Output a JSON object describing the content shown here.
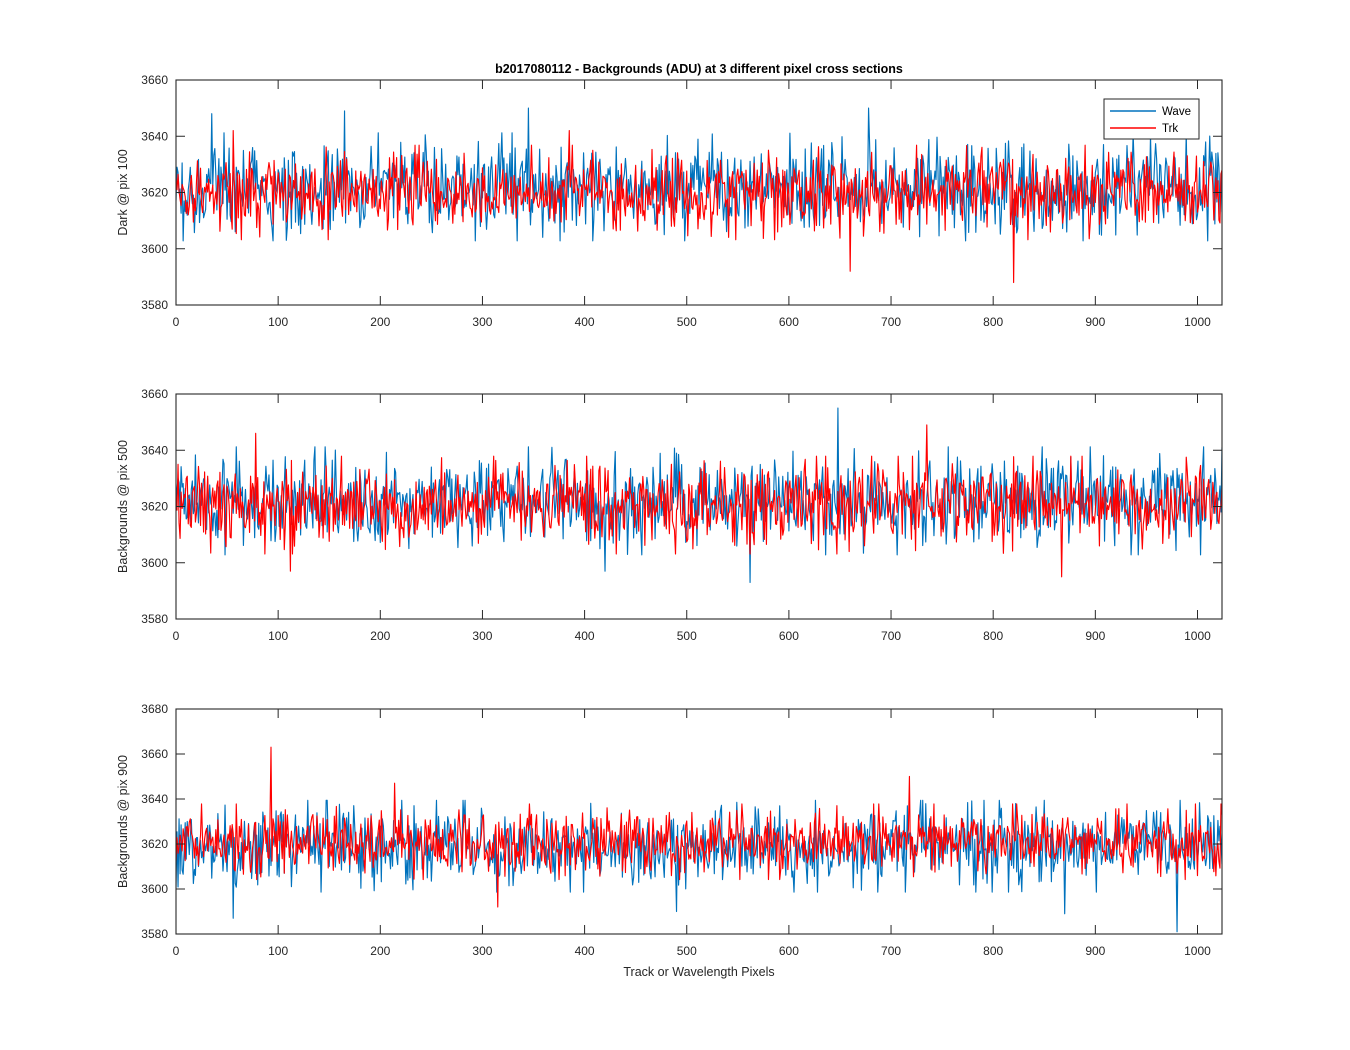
{
  "figure_title": "b2017080112 - Backgrounds (ADU) at 3 different pixel cross sections",
  "legend": [
    {
      "label": "Wave",
      "color": "#0072BD"
    },
    {
      "label": "Trk",
      "color": "#FF0000"
    }
  ],
  "chart_data": [
    {
      "type": "line",
      "title": "b2017080112 - Backgrounds (ADU) at 3 different pixel cross sections",
      "xlabel": "",
      "ylabel": "Dark @ pix 100",
      "xlim": [
        0,
        1024
      ],
      "ylim": [
        3580,
        3660
      ],
      "xticks": [
        0,
        100,
        200,
        300,
        400,
        500,
        600,
        700,
        800,
        900,
        1000
      ],
      "yticks": [
        3580,
        3600,
        3620,
        3640,
        3660
      ],
      "grid": false,
      "legend_position": "top-right",
      "n_points": 1024,
      "series": [
        {
          "name": "Wave",
          "color": "#0072BD",
          "typical_mean": 3622,
          "typical_range": [
            3606,
            3638
          ],
          "notable_points": [
            [
              35,
              3648
            ],
            [
              108,
              3603
            ],
            [
              165,
              3649
            ],
            [
              345,
              3650
            ],
            [
              678,
              3650
            ],
            [
              900,
              3627
            ],
            [
              1024,
              3613
            ]
          ]
        },
        {
          "name": "Trk",
          "color": "#FF0000",
          "typical_mean": 3620,
          "typical_range": [
            3606,
            3634
          ],
          "notable_points": [
            [
              56,
              3642
            ],
            [
              385,
              3642
            ],
            [
              660,
              3592
            ],
            [
              820,
              3588
            ],
            [
              1024,
              3628
            ]
          ]
        }
      ]
    },
    {
      "type": "line",
      "title": "",
      "xlabel": "",
      "ylabel": "Backgrounds @ pix 500",
      "xlim": [
        0,
        1024
      ],
      "ylim": [
        3580,
        3660
      ],
      "xticks": [
        0,
        100,
        200,
        300,
        400,
        500,
        600,
        700,
        800,
        900,
        1000
      ],
      "yticks": [
        3580,
        3600,
        3620,
        3640,
        3660
      ],
      "grid": false,
      "n_points": 1024,
      "series": [
        {
          "name": "Wave",
          "color": "#0072BD",
          "typical_mean": 3622,
          "typical_range": [
            3606,
            3638
          ],
          "notable_points": [
            [
              420,
              3597
            ],
            [
              562,
              3593
            ],
            [
              648,
              3655
            ],
            [
              1024,
              3641
            ]
          ]
        },
        {
          "name": "Trk",
          "color": "#FF0000",
          "typical_mean": 3621,
          "typical_range": [
            3606,
            3635
          ],
          "notable_points": [
            [
              78,
              3646
            ],
            [
              112,
              3597
            ],
            [
              735,
              3649
            ],
            [
              867,
              3595
            ]
          ]
        }
      ]
    },
    {
      "type": "line",
      "title": "",
      "xlabel": "Track or Wavelength Pixels",
      "ylabel": "Backgrounds @ pix 900",
      "xlim": [
        0,
        1024
      ],
      "ylim": [
        3580,
        3680
      ],
      "xticks": [
        0,
        100,
        200,
        300,
        400,
        500,
        600,
        700,
        800,
        900,
        1000
      ],
      "yticks": [
        3580,
        3600,
        3620,
        3640,
        3660,
        3680
      ],
      "grid": false,
      "n_points": 1024,
      "series": [
        {
          "name": "Wave",
          "color": "#0072BD",
          "typical_mean": 3619,
          "typical_range": [
            3602,
            3636
          ],
          "notable_points": [
            [
              56,
              3587
            ],
            [
              490,
              3590
            ],
            [
              870,
              3589
            ],
            [
              980,
              3581
            ],
            [
              1024,
              3611
            ]
          ]
        },
        {
          "name": "Trk",
          "color": "#FF0000",
          "typical_mean": 3621,
          "typical_range": [
            3607,
            3635
          ],
          "notable_points": [
            [
              93,
              3663
            ],
            [
              214,
              3647
            ],
            [
              315,
              3592
            ],
            [
              718,
              3650
            ],
            [
              1024,
              3633
            ]
          ]
        }
      ]
    }
  ]
}
